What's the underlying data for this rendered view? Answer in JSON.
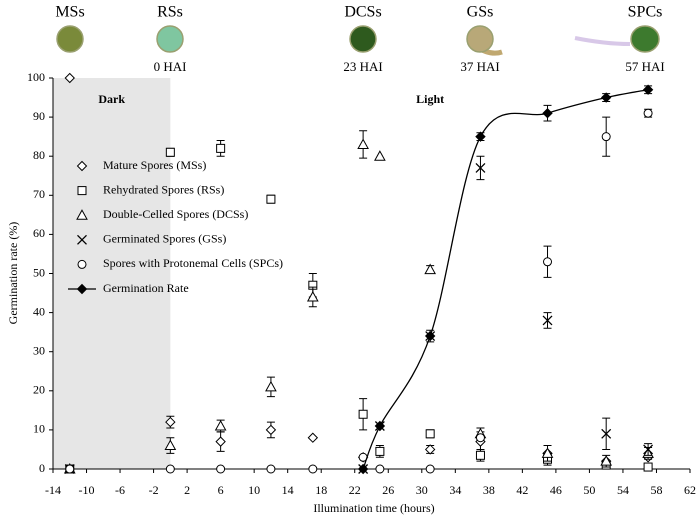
{
  "chart_data": {
    "type": "scatter",
    "stages": [
      {
        "label": "MSs"
      },
      {
        "label": "RSs",
        "time_label": "0 HAI"
      },
      {
        "label": "DCSs",
        "time_label": "23 HAI"
      },
      {
        "label": "GSs",
        "time_label": "37 HAI"
      },
      {
        "label": "SPCs",
        "time_label": "57 HAI"
      }
    ],
    "regions": [
      {
        "label": "Dark",
        "range": [
          -14,
          0
        ],
        "shaded": true
      },
      {
        "label": "Light",
        "range": [
          0,
          62
        ],
        "shaded": false
      }
    ],
    "x_label": "Illumination time (hours)",
    "y_label": "Germination rate (%)",
    "x": [
      -12,
      0,
      6,
      12,
      17,
      23,
      25,
      31,
      37,
      45,
      52,
      57
    ],
    "series": [
      {
        "name": "Mature Spores (MSs)",
        "color": "#000000",
        "marker": "diamond",
        "line": false,
        "values": [
          100,
          12,
          7,
          10,
          8,
          3,
          null,
          5,
          7,
          4,
          2,
          3
        ],
        "errors": [
          null,
          1.5,
          2.5,
          2,
          null,
          null,
          null,
          1,
          2.5,
          null,
          null,
          null
        ]
      },
      {
        "name": "Rehydrated Spores (RSs)",
        "color": "#000000",
        "marker": "square",
        "line": false,
        "values": [
          0,
          81,
          82,
          69,
          47,
          14,
          4.5,
          9,
          3.5,
          2.5,
          1,
          0.5
        ],
        "errors": [
          null,
          1,
          2,
          1,
          3,
          4,
          1.5,
          1,
          1.5,
          1.5,
          null,
          null
        ]
      },
      {
        "name": "Double-Celled Spores (DCSs)",
        "color": "#000000",
        "marker": "triangle",
        "line": false,
        "values": [
          0,
          6,
          11,
          21,
          44,
          83,
          80,
          51,
          9,
          4,
          2,
          4
        ],
        "errors": [
          null,
          2,
          1.5,
          2.5,
          2.5,
          3.5,
          null,
          1,
          1.5,
          2,
          1.5,
          1.5
        ]
      },
      {
        "name": "Germinated Spores (GSs)",
        "color": "#000000",
        "marker": "x",
        "line": false,
        "values": [
          0,
          null,
          null,
          null,
          null,
          0,
          11,
          34,
          77,
          38,
          9,
          5
        ],
        "errors": [
          null,
          null,
          null,
          null,
          null,
          null,
          null,
          1.5,
          3,
          2,
          4,
          1.5
        ]
      },
      {
        "name": "Spores with Protonemal Cells (SPCs)",
        "color": "#000000",
        "marker": "circle",
        "line": false,
        "values": [
          0,
          0,
          0,
          0,
          0,
          3,
          0,
          0,
          8,
          53,
          85,
          91
        ],
        "errors": [
          null,
          null,
          null,
          null,
          null,
          null,
          null,
          null,
          null,
          4,
          5,
          1
        ]
      },
      {
        "name": "Germination Rate",
        "color": "#000000",
        "marker": "filled-diamond",
        "line": true,
        "values": [
          null,
          null,
          null,
          null,
          null,
          0,
          11,
          34,
          85,
          91,
          95,
          97
        ],
        "errors": [
          null,
          null,
          null,
          null,
          null,
          null,
          null,
          null,
          1,
          2,
          1,
          1
        ]
      }
    ],
    "xlim": [
      -14,
      62
    ],
    "xticks": [
      -14,
      -10,
      -6,
      -2,
      2,
      6,
      10,
      14,
      18,
      22,
      26,
      30,
      34,
      38,
      42,
      46,
      50,
      54,
      58,
      62
    ],
    "ylim": [
      0,
      100
    ],
    "yticks": [
      0,
      10,
      20,
      30,
      40,
      50,
      60,
      70,
      80,
      90,
      100
    ],
    "grid": false,
    "legend": "left"
  }
}
